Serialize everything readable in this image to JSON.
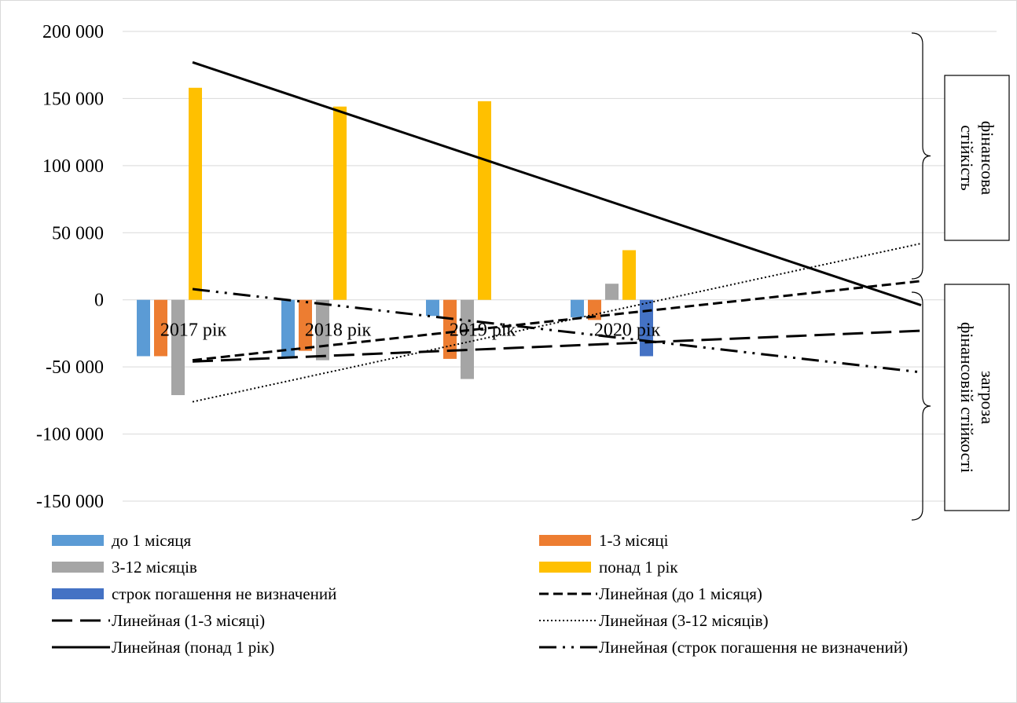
{
  "chart_data": {
    "type": "bar",
    "categories": [
      "2017 рік",
      "2018 рік",
      "2019 рік",
      "2020 рік"
    ],
    "series": [
      {
        "name": "до 1 місяця",
        "values": [
          -42000,
          -43000,
          -12000,
          -13000
        ],
        "color": "#5B9BD5"
      },
      {
        "name": "1-3 місяці",
        "values": [
          -42000,
          -38000,
          -44000,
          -15000
        ],
        "color": "#ED7D31"
      },
      {
        "name": "3-12 місяців",
        "values": [
          -71000,
          -45000,
          -59000,
          12000
        ],
        "color": "#A5A5A5"
      },
      {
        "name": "понад 1 рік",
        "values": [
          158000,
          144000,
          148000,
          37000
        ],
        "color": "#FFC000"
      },
      {
        "name": "строк погашення не визначений",
        "values": [
          0,
          0,
          0,
          -42000
        ],
        "color": "#4472C4"
      }
    ],
    "trendlines": [
      {
        "name": "Линейная (до 1 місяця)",
        "dash": "dashed",
        "start": -45000,
        "end": 14000
      },
      {
        "name": "Линейная (1-3 місяці)",
        "dash": "longdash",
        "start": -46000,
        "end": -23000
      },
      {
        "name": "Линейная (3-12 місяців)",
        "dash": "dotted",
        "start": -76000,
        "end": 42000
      },
      {
        "name": "Линейная (понад 1 рік)",
        "dash": "solid",
        "start": 177000,
        "end": -4000
      },
      {
        "name": "Линейная (строк погашення не визначений)",
        "dash": "dashdotdot",
        "start": 8000,
        "end": -54000
      }
    ],
    "ylim": [
      -150000,
      200000
    ],
    "yticks": [
      200000,
      150000,
      100000,
      50000,
      0,
      -50000,
      -100000,
      -150000
    ],
    "ytick_labels": [
      "200 000",
      "150 000",
      "100 000",
      "50 000",
      "0",
      "-50 000",
      "-100 000",
      "-150 000"
    ],
    "grid": true,
    "legend_position": "bottom"
  },
  "annotations": {
    "upper": "фінансова стійкість",
    "lower": "загроза фінансовій стійкості"
  }
}
